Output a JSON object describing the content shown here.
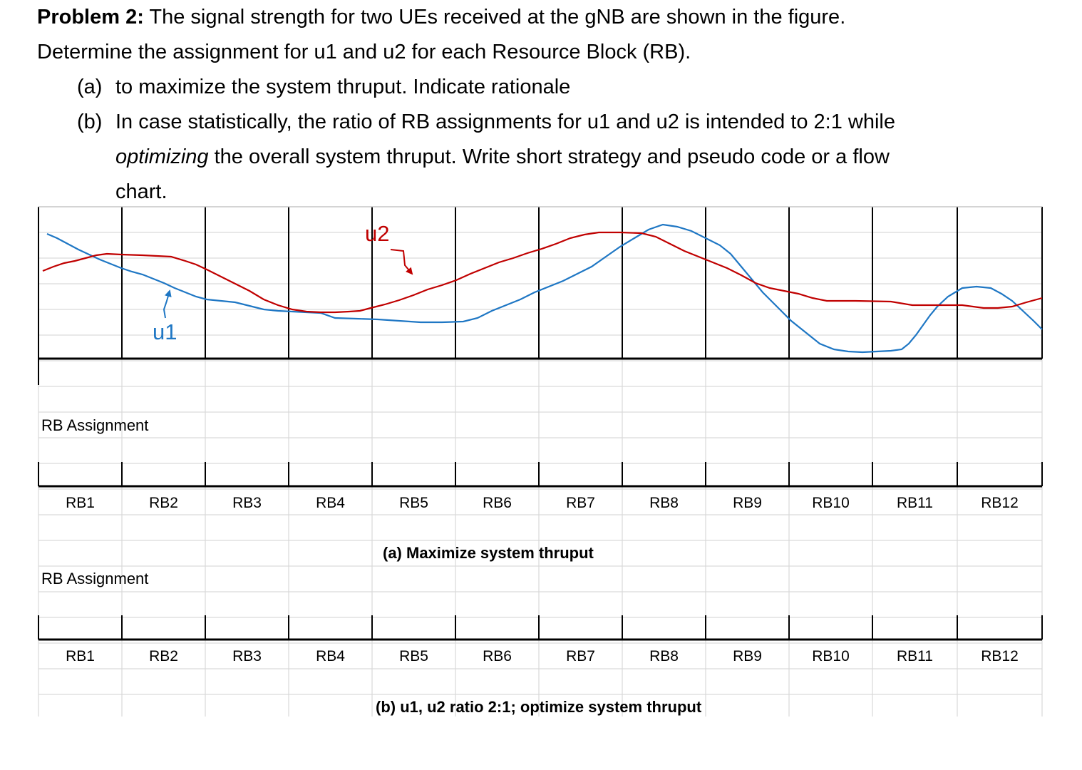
{
  "problem": {
    "title_bold": "Problem 2:",
    "title_rest": " The signal strength for two UEs received at the gNB are shown in the figure.",
    "line2": "Determine the assignment for u1 and u2 for each Resource Block (RB).",
    "part_a_label": "(a)",
    "part_a_text": "to maximize the system thruput. Indicate rationale",
    "part_b_label": "(b)",
    "part_b_text": "In case statistically, the ratio of RB assignments for u1 and u2 is intended to 2:1 while",
    "part_b_italic": "optimizing",
    "part_b_rest": " the overall system thruput. Write short strategy and pseudo code or a flow",
    "part_b_end": "chart."
  },
  "figure": {
    "u1_label": "u1",
    "u2_label": "u2",
    "u1_color": "#1f77c4",
    "u2_color": "#c00000",
    "grid_color": "#d9d9d9"
  },
  "sections": [
    {
      "assignment_label": "RB Assignment",
      "caption": "(a) Maximize system thruput",
      "rb_labels": [
        "RB1",
        "RB2",
        "RB3",
        "RB4",
        "RB5",
        "RB6",
        "RB7",
        "RB8",
        "RB9",
        "RB10",
        "RB11",
        "RB12"
      ]
    },
    {
      "assignment_label": "RB Assignment",
      "caption": "(b) u1,  u2 ratio 2:1; optimize system thruput",
      "rb_labels": [
        "RB1",
        "RB2",
        "RB3",
        "RB4",
        "RB5",
        "RB6",
        "RB7",
        "RB8",
        "RB9",
        "RB10",
        "RB11",
        "RB12"
      ]
    }
  ]
}
